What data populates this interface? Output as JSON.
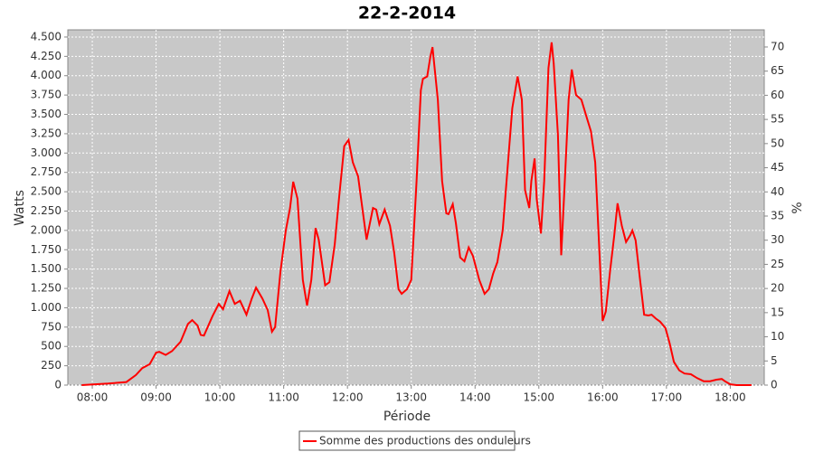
{
  "chart_data": {
    "type": "line",
    "title": "22-2-2014",
    "x_label": "Période",
    "y_label": "Watts",
    "y2_label": "%",
    "x": [
      "07:50",
      "08:15",
      "08:32",
      "08:41",
      "08:47",
      "08:54",
      "09:00",
      "09:03",
      "09:09",
      "09:15",
      "09:23",
      "09:30",
      "09:34",
      "09:39",
      "09:42",
      "09:45",
      "09:53",
      "09:59",
      "10:03",
      "10:09",
      "10:14",
      "10:19",
      "10:25",
      "10:30",
      "10:34",
      "10:40",
      "10:45",
      "10:49",
      "10:52",
      "10:57",
      "11:02",
      "11:06",
      "11:09",
      "11:13",
      "11:18",
      "11:22",
      "11:26",
      "11:30",
      "11:33",
      "11:39",
      "11:43",
      "11:48",
      "11:52",
      "11:57",
      "12:01",
      "12:05",
      "12:10",
      "12:14",
      "12:18",
      "12:24",
      "12:27",
      "12:30",
      "12:35",
      "12:40",
      "12:44",
      "12:48",
      "12:51",
      "12:56",
      "13:00",
      "13:05",
      "13:09",
      "13:11",
      "13:15",
      "13:18",
      "13:20",
      "13:25",
      "13:29",
      "13:33",
      "13:35",
      "13:39",
      "13:42",
      "13:46",
      "13:50",
      "13:54",
      "13:58",
      "14:04",
      "14:09",
      "14:13",
      "14:17",
      "14:21",
      "14:26",
      "14:31",
      "14:35",
      "14:40",
      "14:44",
      "14:47",
      "14:51",
      "14:53",
      "14:56",
      "14:58",
      "15:02",
      "15:05",
      "15:09",
      "15:12",
      "15:14",
      "15:18",
      "15:21",
      "15:24",
      "15:28",
      "15:31",
      "15:35",
      "15:40",
      "15:45",
      "15:49",
      "15:53",
      "15:57",
      "16:00",
      "16:03",
      "16:07",
      "16:11",
      "16:14",
      "16:18",
      "16:22",
      "16:26",
      "16:28",
      "16:31",
      "16:35",
      "16:39",
      "16:43",
      "16:46",
      "16:50",
      "16:54",
      "16:59",
      "17:03",
      "17:07",
      "17:12",
      "17:17",
      "17:23",
      "17:29",
      "17:35",
      "17:41",
      "17:47",
      "17:52",
      "17:55",
      "18:00",
      "18:06",
      "18:20"
    ],
    "series": [
      {
        "name": "Somme des productions des onduleurs",
        "color": "#ff0000",
        "values": [
          0,
          20,
          40,
          130,
          220,
          270,
          420,
          430,
          390,
          440,
          560,
          790,
          840,
          770,
          650,
          640,
          890,
          1050,
          980,
          1215,
          1050,
          1090,
          910,
          1120,
          1260,
          1120,
          970,
          690,
          750,
          1470,
          2000,
          2290,
          2630,
          2410,
          1360,
          1030,
          1360,
          2030,
          1880,
          1290,
          1330,
          1820,
          2410,
          3090,
          3170,
          2880,
          2700,
          2290,
          1880,
          2290,
          2270,
          2080,
          2270,
          2060,
          1710,
          1240,
          1180,
          1240,
          1360,
          2640,
          3810,
          3960,
          3990,
          4250,
          4370,
          3690,
          2640,
          2220,
          2210,
          2340,
          2090,
          1650,
          1600,
          1780,
          1670,
          1360,
          1180,
          1240,
          1440,
          1590,
          2000,
          2880,
          3580,
          3990,
          3690,
          2520,
          2290,
          2640,
          2930,
          2410,
          1960,
          2640,
          4100,
          4430,
          4160,
          3230,
          1680,
          2520,
          3690,
          4080,
          3750,
          3690,
          3460,
          3280,
          2880,
          1710,
          830,
          950,
          1470,
          1940,
          2350,
          2060,
          1850,
          1940,
          2000,
          1870,
          1380,
          910,
          900,
          910,
          860,
          820,
          740,
          540,
          300,
          190,
          150,
          140,
          90,
          50,
          50,
          70,
          80,
          50,
          10,
          0,
          0
        ]
      }
    ],
    "xlim": [
      "07:37",
      "18:32"
    ],
    "xticks": [
      "08:00",
      "09:00",
      "10:00",
      "11:00",
      "12:00",
      "13:00",
      "14:00",
      "15:00",
      "16:00",
      "17:00",
      "18:00"
    ],
    "ylim": [
      0,
      4593
    ],
    "yticks": [
      0,
      250,
      500,
      750,
      {
        "value": 1000,
        "label": "1.000"
      },
      {
        "value": 1250,
        "label": "1.250"
      },
      {
        "value": 1500,
        "label": "1.500"
      },
      {
        "value": 1750,
        "label": "1.750"
      },
      {
        "value": 2000,
        "label": "2.000"
      },
      {
        "value": 2250,
        "label": "2.250"
      },
      {
        "value": 2500,
        "label": "2.500"
      },
      {
        "value": 2750,
        "label": "2.750"
      },
      {
        "value": 3000,
        "label": "3.000"
      },
      {
        "value": 3250,
        "label": "3.250"
      },
      {
        "value": 3500,
        "label": "3.500"
      },
      {
        "value": 3750,
        "label": "3.750"
      },
      {
        "value": 4000,
        "label": "4.000"
      },
      {
        "value": 4250,
        "label": "4.250"
      },
      {
        "value": 4500,
        "label": "4.500"
      }
    ],
    "y2lim": [
      0,
      73.55
    ],
    "y2ticks": [
      0,
      5,
      10,
      15,
      20,
      25,
      30,
      35,
      40,
      45,
      50,
      55,
      60,
      65,
      70
    ],
    "grid": true
  }
}
